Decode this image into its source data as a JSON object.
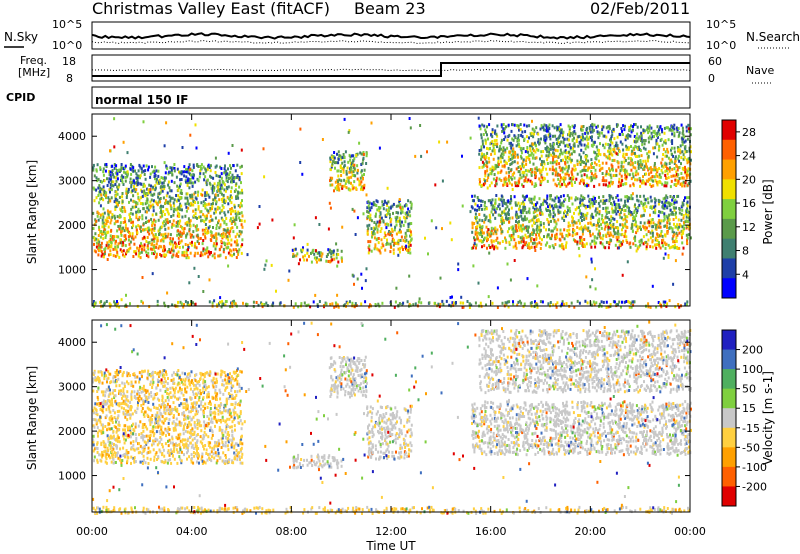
{
  "header": {
    "station": "Christmas Valley East (fitACF)",
    "beam": "Beam 23",
    "date": "02/Feb/2011"
  },
  "summary_panels": {
    "nsky_label": "N.Sky",
    "nsearch_label": "N.Search",
    "count_ticks": [
      "10^5",
      "10^0"
    ],
    "freq_label": "Freq.",
    "freq_unit": "[MHz]",
    "freq_ticks": [
      "18",
      "8"
    ],
    "nave_label": "Nave",
    "nave_ticks": [
      "60",
      "0"
    ],
    "cpid_label": "CPID",
    "cpid_text": "normal 150 IF"
  },
  "colors": {
    "power_scale": [
      "#0000ff",
      "#1e3fa8",
      "#3f7f70",
      "#5a9a4a",
      "#7fcf3f",
      "#f0e000",
      "#ffa000",
      "#ff6000",
      "#e00000"
    ],
    "velocity_scale": [
      "#2020c0",
      "#3f6fbf",
      "#4faf5f",
      "#7fcf3f",
      "#c8c8c8",
      "#ffd040",
      "#ffa000",
      "#ff6000",
      "#e00000"
    ]
  },
  "chart_data": [
    {
      "type": "heatmap",
      "name": "power",
      "xlabel": "",
      "ylabel": "Slant Range [km]",
      "x_ticks": [
        "00:00",
        "04:00",
        "08:00",
        "12:00",
        "16:00",
        "20:00",
        "00:00"
      ],
      "x_range_hours": [
        0,
        24
      ],
      "y_ticks": [
        1000,
        2000,
        3000,
        4000
      ],
      "y_range_km": [
        180,
        4500
      ],
      "colorbar_label": "Power [dB]",
      "colorbar_ticks": [
        28,
        24,
        20,
        16,
        12,
        8,
        4
      ],
      "colorbar_range": [
        0,
        30
      ]
    },
    {
      "type": "heatmap",
      "name": "velocity",
      "xlabel": "Time UT",
      "ylabel": "Slant Range [km]",
      "x_ticks": [
        "00:00",
        "04:00",
        "08:00",
        "12:00",
        "16:00",
        "20:00",
        "00:00"
      ],
      "x_range_hours": [
        0,
        24
      ],
      "y_ticks": [
        1000,
        2000,
        3000,
        4000
      ],
      "y_range_km": [
        180,
        4500
      ],
      "colorbar_label": "Velocity [m s-1]",
      "colorbar_ticks": [
        200,
        100,
        50,
        15,
        -15,
        -50,
        -100,
        -200
      ]
    }
  ],
  "echo_regions": [
    {
      "t0": 0.0,
      "t1": 6.0,
      "r0": 1300,
      "r1": 3400
    },
    {
      "t0": 8.0,
      "t1": 10.0,
      "r0": 1200,
      "r1": 1500
    },
    {
      "t0": 9.5,
      "t1": 11.0,
      "r0": 2800,
      "r1": 3700
    },
    {
      "t0": 11.0,
      "t1": 12.8,
      "r0": 1400,
      "r1": 2600
    },
    {
      "t0": 15.2,
      "t1": 24.0,
      "r0": 1500,
      "r1": 2700
    },
    {
      "t0": 15.5,
      "t1": 24.0,
      "r0": 2900,
      "r1": 4300
    },
    {
      "t0": 0.0,
      "t1": 24.0,
      "r0": 180,
      "r1": 320
    }
  ]
}
